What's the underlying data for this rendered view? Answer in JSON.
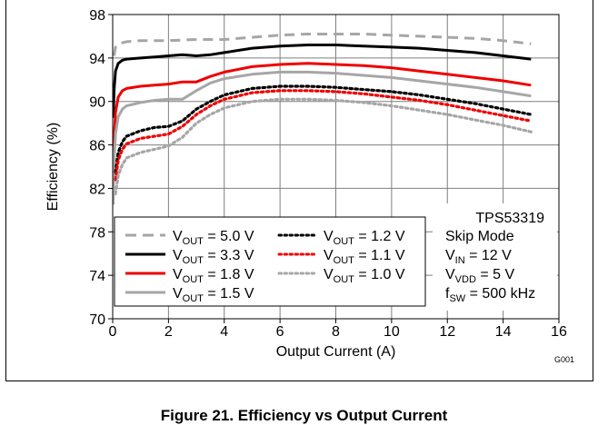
{
  "chart_data": {
    "type": "line",
    "xlabel": "Output Current (A)",
    "ylabel": "Efficiency (%)",
    "xlim": [
      0,
      16
    ],
    "ylim": [
      70,
      98
    ],
    "xticks": [
      0,
      2,
      4,
      6,
      8,
      10,
      12,
      14,
      16
    ],
    "yticks": [
      70,
      74,
      78,
      82,
      86,
      90,
      94,
      98
    ],
    "grid": true,
    "legend_placement": "bottom-left",
    "annotation_title": "TPS53319",
    "annotation_lines": [
      {
        "main": "Skip Mode",
        "sub": "",
        "rest": ""
      },
      {
        "main": "V",
        "sub": "IN",
        "rest": " = 12 V"
      },
      {
        "main": "V",
        "sub": "VDD",
        "rest": " = 5 V"
      },
      {
        "main": "f",
        "sub": "SW",
        "rest": " = 500 kHz"
      }
    ],
    "figure_id": "G001",
    "series": [
      {
        "name_main": "V",
        "name_sub": "OUT",
        "name_rest": " = 5.0 V",
        "color": "#a6a6a6",
        "style": "dashed",
        "x": [
          0.05,
          0.1,
          0.2,
          0.35,
          0.5,
          1,
          2,
          3,
          4,
          5,
          6,
          7,
          8,
          9,
          10,
          11,
          12,
          13,
          14,
          15
        ],
        "y": [
          94.2,
          95.0,
          95.3,
          95.4,
          95.5,
          95.6,
          95.6,
          95.7,
          95.7,
          95.9,
          96.1,
          96.2,
          96.2,
          96.2,
          96.1,
          96.0,
          95.9,
          95.8,
          95.6,
          95.3
        ]
      },
      {
        "name_main": "V",
        "name_sub": "OUT",
        "name_rest": " = 3.3 V",
        "color": "#000000",
        "style": "solid",
        "x": [
          0.02,
          0.05,
          0.1,
          0.2,
          0.35,
          0.5,
          1,
          1.5,
          2,
          2.5,
          3,
          3.5,
          4,
          5,
          6,
          7,
          8,
          9,
          10,
          11,
          12,
          13,
          14,
          15
        ],
        "y": [
          88.5,
          91.0,
          92.8,
          93.5,
          93.8,
          93.9,
          94.0,
          94.1,
          94.2,
          94.3,
          94.2,
          94.3,
          94.5,
          94.9,
          95.1,
          95.2,
          95.2,
          95.1,
          95.0,
          94.9,
          94.7,
          94.5,
          94.2,
          93.9
        ]
      },
      {
        "name_main": "V",
        "name_sub": "OUT",
        "name_rest": " = 1.8 V",
        "color": "#ee0000",
        "style": "solid",
        "x": [
          0.02,
          0.05,
          0.1,
          0.2,
          0.35,
          0.5,
          1,
          1.5,
          2,
          2.5,
          3,
          3.5,
          4,
          5,
          6,
          7,
          8,
          9,
          10,
          11,
          12,
          13,
          14,
          15
        ],
        "y": [
          83.0,
          86.5,
          89.0,
          90.4,
          91.0,
          91.2,
          91.4,
          91.5,
          91.6,
          91.8,
          91.8,
          92.3,
          92.7,
          93.2,
          93.4,
          93.5,
          93.4,
          93.3,
          93.1,
          92.8,
          92.5,
          92.2,
          91.9,
          91.5
        ]
      },
      {
        "name_main": "V",
        "name_sub": "OUT",
        "name_rest": " = 1.5 V",
        "color": "#a6a6a6",
        "style": "solid",
        "x": [
          0.02,
          0.05,
          0.1,
          0.2,
          0.35,
          0.5,
          1,
          1.5,
          2,
          2.5,
          3,
          3.5,
          4,
          5,
          6,
          7,
          8,
          9,
          10,
          11,
          12,
          13,
          14,
          15
        ],
        "y": [
          80.5,
          84.5,
          87.0,
          88.6,
          89.3,
          89.6,
          89.9,
          90.1,
          90.2,
          90.2,
          91.0,
          91.7,
          92.1,
          92.5,
          92.7,
          92.7,
          92.6,
          92.4,
          92.2,
          91.9,
          91.6,
          91.3,
          90.9,
          90.5
        ]
      },
      {
        "name_main": "V",
        "name_sub": "OUT",
        "name_rest": " = 1.2 V",
        "color": "#000000",
        "style": "dotted",
        "x": [
          0.1,
          0.2,
          0.35,
          0.5,
          1,
          1.5,
          2,
          2.5,
          3,
          3.5,
          4,
          5,
          6,
          7,
          8,
          9,
          10,
          11,
          12,
          13,
          14,
          15
        ],
        "y": [
          83.5,
          85.3,
          86.3,
          86.8,
          87.3,
          87.6,
          87.7,
          88.2,
          89.3,
          90.0,
          90.6,
          91.2,
          91.4,
          91.4,
          91.3,
          91.1,
          90.9,
          90.6,
          90.2,
          89.8,
          89.3,
          88.8
        ]
      },
      {
        "name_main": "V",
        "name_sub": "OUT",
        "name_rest": " = 1.1 V",
        "color": "#ee0000",
        "style": "dotted",
        "x": [
          0.1,
          0.2,
          0.35,
          0.5,
          1,
          1.5,
          2,
          2.5,
          3,
          3.5,
          4,
          5,
          6,
          7,
          8,
          9,
          10,
          11,
          12,
          13,
          14,
          15
        ],
        "y": [
          82.8,
          84.6,
          85.6,
          86.1,
          86.6,
          86.8,
          87.0,
          87.7,
          88.8,
          89.6,
          90.2,
          90.8,
          91.0,
          91.0,
          90.9,
          90.7,
          90.4,
          90.1,
          89.7,
          89.2,
          88.7,
          88.2
        ]
      },
      {
        "name_main": "V",
        "name_sub": "OUT",
        "name_rest": " = 1.0 V",
        "color": "#a6a6a6",
        "style": "dotted",
        "x": [
          0.1,
          0.2,
          0.35,
          0.5,
          1,
          1.5,
          2,
          2.5,
          3,
          3.5,
          4,
          5,
          6,
          7,
          8,
          9,
          10,
          11,
          12,
          13,
          14,
          15
        ],
        "y": [
          81.5,
          83.2,
          84.2,
          84.8,
          85.3,
          85.6,
          85.9,
          86.7,
          88.0,
          88.8,
          89.4,
          90.0,
          90.2,
          90.2,
          90.1,
          89.9,
          89.6,
          89.2,
          88.8,
          88.3,
          87.8,
          87.2
        ]
      }
    ]
  },
  "caption": "Figure 21. Efficiency vs Output Current"
}
